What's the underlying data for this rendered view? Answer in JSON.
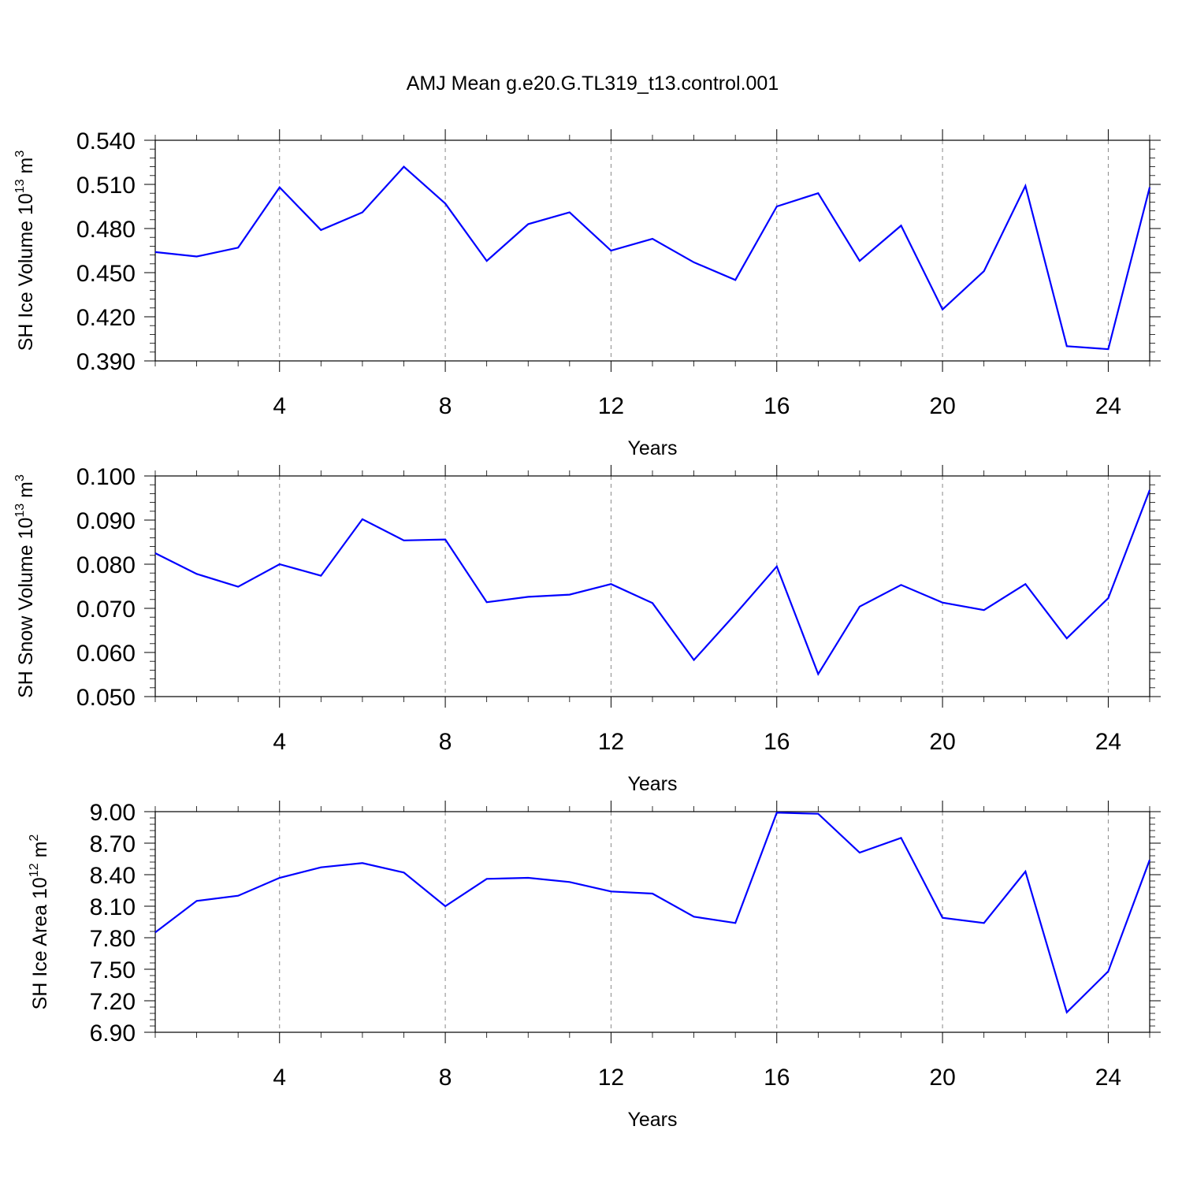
{
  "title": "AMJ Mean g.e20.G.TL319_t13.control.001",
  "chart_data": [
    {
      "type": "line",
      "xlabel": "Years",
      "ylabel_main": "SH Ice Volume 10",
      "ylabel_sup": "13",
      "ylabel_unit": " m",
      "ylabel_unit_sup": "3",
      "xlim": [
        1,
        25
      ],
      "ylim": [
        0.39,
        0.54
      ],
      "xticks": [
        4,
        8,
        12,
        16,
        20,
        24
      ],
      "yticks": [
        0.39,
        0.42,
        0.45,
        0.48,
        0.51,
        0.54
      ],
      "ytick_labels": [
        "0.390",
        "0.420",
        "0.450",
        "0.480",
        "0.510",
        "0.540"
      ],
      "series": [
        {
          "name": "SH Ice Volume",
          "color": "#0000ff",
          "x": [
            1,
            2,
            3,
            4,
            5,
            6,
            7,
            8,
            9,
            10,
            11,
            12,
            13,
            14,
            15,
            16,
            17,
            18,
            19,
            20,
            21,
            22,
            23,
            24,
            25
          ],
          "values": [
            0.464,
            0.461,
            0.467,
            0.508,
            0.479,
            0.491,
            0.522,
            0.497,
            0.458,
            0.483,
            0.491,
            0.465,
            0.473,
            0.457,
            0.445,
            0.495,
            0.504,
            0.458,
            0.482,
            0.425,
            0.451,
            0.509,
            0.4,
            0.398,
            0.508
          ]
        }
      ]
    },
    {
      "type": "line",
      "xlabel": "Years",
      "ylabel_main": "SH Snow Volume 10",
      "ylabel_sup": "13",
      "ylabel_unit": " m",
      "ylabel_unit_sup": "3",
      "xlim": [
        1,
        25
      ],
      "ylim": [
        0.05,
        0.1
      ],
      "xticks": [
        4,
        8,
        12,
        16,
        20,
        24
      ],
      "yticks": [
        0.05,
        0.06,
        0.07,
        0.08,
        0.09,
        0.1
      ],
      "ytick_labels": [
        "0.050",
        "0.060",
        "0.070",
        "0.080",
        "0.090",
        "0.100"
      ],
      "series": [
        {
          "name": "SH Snow Volume",
          "color": "#0000ff",
          "x": [
            1,
            2,
            3,
            4,
            5,
            6,
            7,
            8,
            9,
            10,
            11,
            12,
            13,
            14,
            15,
            16,
            17,
            18,
            19,
            20,
            21,
            22,
            23,
            24,
            25
          ],
          "values": [
            0.0825,
            0.0778,
            0.0749,
            0.08,
            0.0774,
            0.0902,
            0.0854,
            0.0856,
            0.0714,
            0.0726,
            0.0731,
            0.0755,
            0.0712,
            0.0583,
            0.0687,
            0.0795,
            0.0551,
            0.0704,
            0.0753,
            0.0713,
            0.0696,
            0.0755,
            0.0632,
            0.0723,
            0.0968
          ]
        }
      ]
    },
    {
      "type": "line",
      "xlabel": "Years",
      "ylabel_main": "SH Ice Area 10",
      "ylabel_sup": "12",
      "ylabel_unit": " m",
      "ylabel_unit_sup": "2",
      "xlim": [
        1,
        25
      ],
      "ylim": [
        6.9,
        9.0
      ],
      "xticks": [
        4,
        8,
        12,
        16,
        20,
        24
      ],
      "yticks": [
        6.9,
        7.2,
        7.5,
        7.8,
        8.1,
        8.4,
        8.7,
        9.0
      ],
      "ytick_labels": [
        "6.90",
        "7.20",
        "7.50",
        "7.80",
        "8.10",
        "8.40",
        "8.70",
        "9.00"
      ],
      "series": [
        {
          "name": "SH Ice Area",
          "color": "#0000ff",
          "x": [
            1,
            2,
            3,
            4,
            5,
            6,
            7,
            8,
            9,
            10,
            11,
            12,
            13,
            14,
            15,
            16,
            17,
            18,
            19,
            20,
            21,
            22,
            23,
            24,
            25
          ],
          "values": [
            7.85,
            8.15,
            8.2,
            8.37,
            8.47,
            8.51,
            8.42,
            8.1,
            8.36,
            8.37,
            8.33,
            8.24,
            8.22,
            8.0,
            7.94,
            8.99,
            8.98,
            8.61,
            8.75,
            7.99,
            7.94,
            8.43,
            7.09,
            7.48,
            8.54
          ]
        }
      ]
    }
  ]
}
